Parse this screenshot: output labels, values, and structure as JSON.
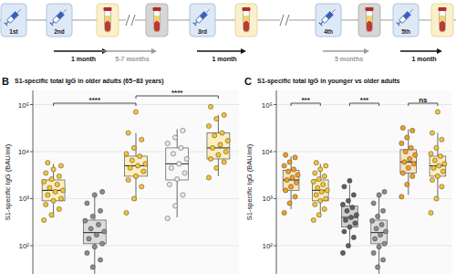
{
  "timeline": {
    "doses": [
      "1st",
      "2nd",
      "3rd",
      "4th",
      "5th"
    ],
    "intervals": [
      "1 month",
      "5-7 months",
      "1 month",
      "5 months",
      "1 month"
    ]
  },
  "chart_data": [
    {
      "type": "box",
      "panel": "B",
      "title": "S1-specific total IgG in older adults (65−83 years)",
      "ylabel": "S1-specific IgG (BAU/ml)",
      "log": "y",
      "grid": true,
      "tick_labels": "y",
      "categories": [
        null,
        null,
        null,
        null,
        null
      ],
      "ylim": [
        25,
        200000
      ],
      "yticks": [
        {
          "value": 100,
          "label": "10²"
        },
        {
          "value": 1000,
          "label": "10³"
        },
        {
          "value": 10000,
          "label": "10⁴"
        },
        {
          "value": 100000,
          "label": "10⁵"
        }
      ],
      "colors": [
        "#f5c531",
        "#8c8c8c",
        "#f5c531",
        "#e8e8e8",
        "#f5c531"
      ],
      "boxes": [
        {
          "whisker_low": 400,
          "q1": 900,
          "median": 1500,
          "q3": 2500,
          "whisker_high": 5500,
          "points": [
            350,
            450,
            600,
            750,
            900,
            1000,
            1200,
            1400,
            1500,
            1700,
            2000,
            2300,
            2600,
            3000,
            3500,
            4200,
            5000,
            5800
          ]
        },
        {
          "whisker_low": 25,
          "q1": 110,
          "median": 190,
          "q3": 350,
          "whisker_high": 1200,
          "points": [
            22,
            35,
            50,
            70,
            95,
            110,
            140,
            170,
            200,
            230,
            280,
            340,
            420,
            550,
            800,
            1200,
            1400
          ]
        },
        {
          "whisker_low": 900,
          "q1": 3000,
          "median": 5000,
          "q3": 8000,
          "whisker_high": 25000,
          "points": [
            500,
            1000,
            1800,
            2500,
            3000,
            3800,
            4500,
            5000,
            5500,
            6500,
            8000,
            9000,
            12000,
            18000,
            25000,
            70000
          ]
        },
        {
          "whisker_low": 400,
          "q1": 2500,
          "median": 5500,
          "q3": 12000,
          "whisker_high": 30000,
          "points": [
            380,
            700,
            1200,
            2000,
            2600,
            3500,
            4500,
            5500,
            7000,
            9000,
            12000,
            15000,
            20000,
            28000
          ]
        },
        {
          "whisker_low": 3000,
          "q1": 7000,
          "median": 12000,
          "q3": 25000,
          "whisker_high": 60000,
          "points": [
            2800,
            4500,
            6000,
            7000,
            8500,
            10000,
            12000,
            14000,
            17000,
            22000,
            25000,
            35000,
            50000,
            60000,
            90000
          ]
        }
      ],
      "annotations": [
        {
          "text": "****",
          "between": [
            0,
            2
          ]
        },
        {
          "text": "****",
          "between": [
            2,
            4
          ]
        }
      ]
    },
    {
      "type": "box",
      "panel": "C",
      "title": "S1-specific total IgG in younger vs older adults",
      "ylabel": "S1-specific IgG (BAU/ml)",
      "log": "y",
      "grid": true,
      "tick_labels": "y",
      "categories": [
        null,
        null,
        null,
        null,
        null,
        null
      ],
      "ylim": [
        25,
        200000
      ],
      "yticks": [
        {
          "value": 100,
          "label": "10²"
        },
        {
          "value": 1000,
          "label": "10³"
        },
        {
          "value": 10000,
          "label": "10⁴"
        },
        {
          "value": 100000,
          "label": "10⁵"
        }
      ],
      "colors": [
        "#f0a022",
        "#f5c531",
        "#5f5f5f",
        "#8c8c8c",
        "#f0a022",
        "#f5c531"
      ],
      "boxes": [
        {
          "whisker_low": 600,
          "q1": 1500,
          "median": 2500,
          "q3": 4000,
          "whisker_high": 8000,
          "points": [
            500,
            800,
            1100,
            1500,
            1800,
            2200,
            2500,
            2800,
            3200,
            3800,
            4200,
            5000,
            6000,
            7500,
            8500
          ]
        },
        {
          "whisker_low": 400,
          "q1": 900,
          "median": 1500,
          "q3": 2500,
          "whisker_high": 5500,
          "points": [
            350,
            450,
            600,
            750,
            900,
            1000,
            1200,
            1400,
            1500,
            1700,
            2000,
            2300,
            2600,
            3000,
            3500,
            4200,
            5000,
            5800
          ]
        },
        {
          "whisker_low": 90,
          "q1": 250,
          "median": 400,
          "q3": 700,
          "whisker_high": 2000,
          "points": [
            70,
            100,
            150,
            200,
            250,
            300,
            350,
            400,
            450,
            550,
            650,
            750,
            900,
            1200,
            1800,
            2400
          ]
        },
        {
          "whisker_low": 25,
          "q1": 110,
          "median": 190,
          "q3": 350,
          "whisker_high": 1200,
          "points": [
            22,
            35,
            50,
            70,
            95,
            110,
            140,
            170,
            200,
            230,
            280,
            340,
            420,
            550,
            800,
            1200,
            1400
          ]
        },
        {
          "whisker_low": 1200,
          "q1": 3500,
          "median": 6000,
          "q3": 11000,
          "whisker_high": 30000,
          "points": [
            1100,
            2000,
            3000,
            3500,
            4500,
            5500,
            6000,
            7000,
            8500,
            10000,
            12000,
            15000,
            20000,
            28000,
            32000
          ]
        },
        {
          "whisker_low": 900,
          "q1": 3000,
          "median": 5000,
          "q3": 8000,
          "whisker_high": 25000,
          "points": [
            500,
            1000,
            1800,
            2500,
            3000,
            3800,
            4500,
            5000,
            5500,
            6500,
            8000,
            9000,
            12000,
            18000,
            25000,
            70000
          ]
        }
      ],
      "annotations": [
        {
          "text": "***",
          "between": [
            0,
            1
          ]
        },
        {
          "text": "***",
          "between": [
            2,
            3
          ]
        },
        {
          "text": "ns",
          "between": [
            4,
            5
          ]
        }
      ]
    }
  ]
}
